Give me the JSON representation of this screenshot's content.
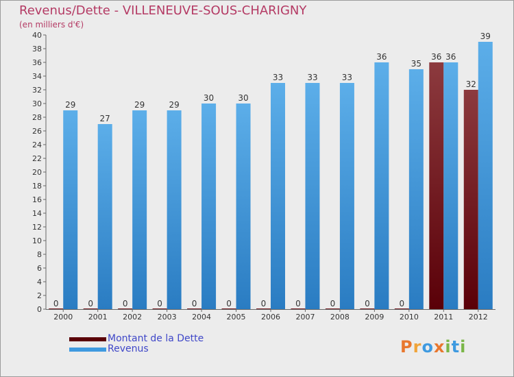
{
  "header": {
    "title": "Revenus/Dette - VILLENEUVE-SOUS-CHARIGNY",
    "subtitle": "(en milliers d'€)"
  },
  "colors": {
    "background": "#ececec",
    "title": "#b43a64",
    "legend_text": "#3f47c8",
    "dette_dark": "#5a0008",
    "dette_light": "#8c3a3e",
    "revenus_dark": "#2a7cc2",
    "revenus_light": "#5caee9"
  },
  "legend": {
    "items": [
      {
        "label": "Montant de la Dette",
        "color": "#5a0008"
      },
      {
        "label": "Revenus",
        "color": "#3f9ae0"
      }
    ]
  },
  "logo": {
    "text": "Proxiti",
    "letters": [
      {
        "ch": "P",
        "color": "#e8772e"
      },
      {
        "ch": "r",
        "color": "#f0a43a"
      },
      {
        "ch": "o",
        "color": "#3f9ae0"
      },
      {
        "ch": "x",
        "color": "#e8772e"
      },
      {
        "ch": "i",
        "color": "#7ab648"
      },
      {
        "ch": "t",
        "color": "#3f9ae0"
      },
      {
        "ch": "i",
        "color": "#7ab648"
      }
    ]
  },
  "chart_data": {
    "type": "bar",
    "title": "Revenus/Dette - VILLENEUVE-SOUS-CHARIGNY",
    "ylabel": "(en milliers d'€)",
    "xlabel": "",
    "categories": [
      "2000",
      "2001",
      "2002",
      "2003",
      "2004",
      "2005",
      "2006",
      "2007",
      "2008",
      "2009",
      "2010",
      "2011",
      "2012"
    ],
    "series": [
      {
        "name": "Montant de la Dette",
        "values": [
          0,
          0,
          0,
          0,
          0,
          0,
          0,
          0,
          0,
          0,
          0,
          36,
          32
        ]
      },
      {
        "name": "Revenus",
        "values": [
          29,
          27,
          29,
          29,
          30,
          30,
          33,
          33,
          33,
          36,
          35,
          36,
          39
        ]
      }
    ],
    "ylim": [
      0,
      40
    ],
    "yticks": [
      0,
      2,
      4,
      6,
      8,
      10,
      12,
      14,
      16,
      18,
      20,
      22,
      24,
      26,
      28,
      30,
      32,
      34,
      36,
      38,
      40
    ],
    "grid": false,
    "legend_position": "bottom-left"
  }
}
